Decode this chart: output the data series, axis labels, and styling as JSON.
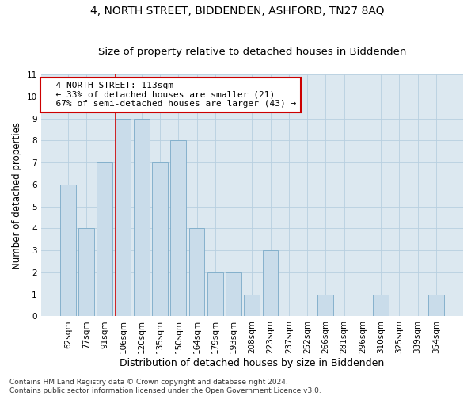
{
  "title": "4, NORTH STREET, BIDDENDEN, ASHFORD, TN27 8AQ",
  "subtitle": "Size of property relative to detached houses in Biddenden",
  "xlabel": "Distribution of detached houses by size in Biddenden",
  "ylabel": "Number of detached properties",
  "categories": [
    "62sqm",
    "77sqm",
    "91sqm",
    "106sqm",
    "120sqm",
    "135sqm",
    "150sqm",
    "164sqm",
    "179sqm",
    "193sqm",
    "208sqm",
    "223sqm",
    "237sqm",
    "252sqm",
    "266sqm",
    "281sqm",
    "296sqm",
    "310sqm",
    "325sqm",
    "339sqm",
    "354sqm"
  ],
  "values": [
    6,
    4,
    7,
    9,
    9,
    7,
    8,
    4,
    2,
    2,
    1,
    3,
    0,
    0,
    1,
    0,
    0,
    1,
    0,
    0,
    1
  ],
  "bar_color": "#c9dcea",
  "bar_edge_color": "#7aaac8",
  "highlight_index": 3,
  "highlight_line_color": "#cc0000",
  "annotation_text": "  4 NORTH STREET: 113sqm\n  ← 33% of detached houses are smaller (21)\n  67% of semi-detached houses are larger (43) →",
  "annotation_box_color": "#ffffff",
  "annotation_box_edge_color": "#cc0000",
  "ylim": [
    0,
    11
  ],
  "yticks": [
    0,
    1,
    2,
    3,
    4,
    5,
    6,
    7,
    8,
    9,
    10,
    11
  ],
  "grid_color": "#b8cfe0",
  "background_color": "#dce8f0",
  "footer_text": "Contains HM Land Registry data © Crown copyright and database right 2024.\nContains public sector information licensed under the Open Government Licence v3.0.",
  "title_fontsize": 10,
  "subtitle_fontsize": 9.5,
  "xlabel_fontsize": 9,
  "ylabel_fontsize": 8.5,
  "tick_fontsize": 7.5,
  "annotation_fontsize": 8,
  "footer_fontsize": 6.5
}
